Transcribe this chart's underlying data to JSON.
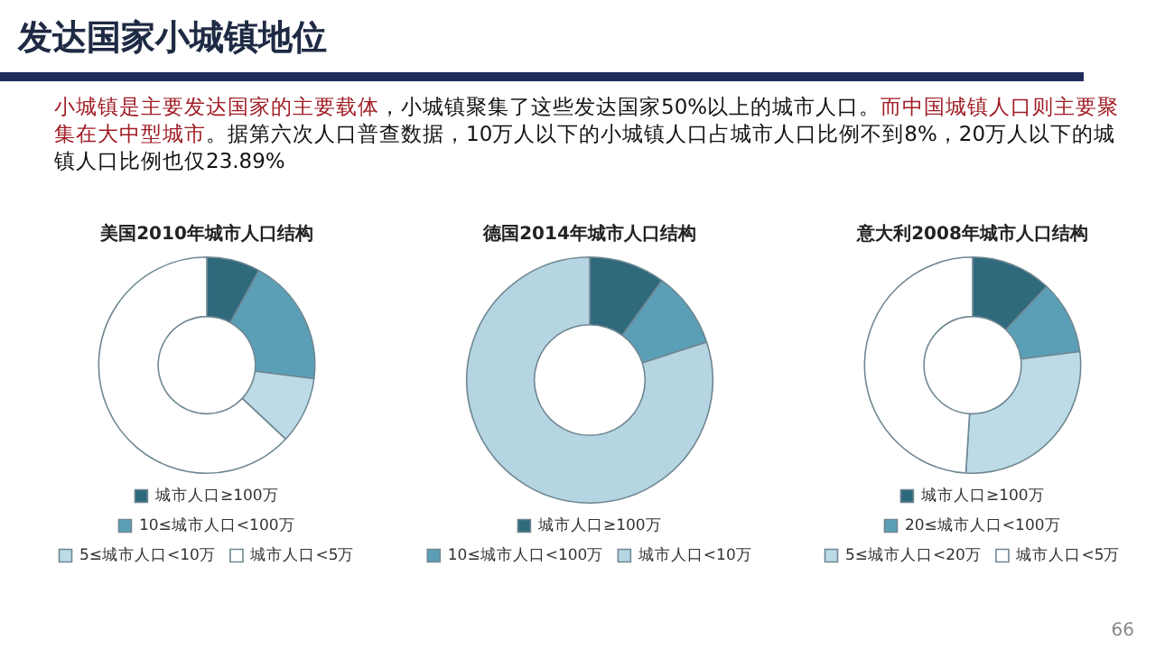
{
  "chart_data": [
    {
      "type": "donut",
      "title": "美国2010年城市人口结构",
      "legend": "bottom",
      "annotations": [
        "发达国家小城镇地位",
        "小城镇是主要发达国家的主要载体",
        "，小城镇聚集了这些发达国家50%以上的城市人口。",
        "而中国城镇人口则主要聚集在大中型城市",
        "。据第六次人口普查数据，10万人以下的小城镇人口占城市人口比例不到8%，20万人以下的城镇人口比例也仅23.89%"
      ],
      "categories": [
        "城市人口≥100万",
        "10≤城市人口<100万",
        "5≤城市人口<10万",
        "城市人口<5万"
      ],
      "values": [
        8,
        19,
        10,
        63
      ],
      "colors": [
        "#2f6a7c",
        "#5b9fb7",
        "#bcdbe7",
        "#ffffff"
      ]
    },
    {
      "type": "donut",
      "title": "德国2014年城市人口结构",
      "legend": "bottom",
      "categories": [
        "城市人口≥100万",
        "10≤城市人口<100万",
        "城市人口<10万"
      ],
      "values": [
        10,
        10,
        80
      ],
      "colors": [
        "#2f6a7c",
        "#5b9fb7",
        "#b5d5e2"
      ]
    },
    {
      "type": "donut",
      "title": "意大利2008年城市人口结构",
      "legend": "bottom",
      "annotations": [
        "66"
      ],
      "categories": [
        "城市人口≥100万",
        "20≤城市人口<100万",
        "5≤城市人口<20万",
        "城市人口<5万"
      ],
      "values": [
        12,
        11,
        28,
        49
      ],
      "colors": [
        "#2f6a7c",
        "#5b9fb7",
        "#bcdbe7",
        "#ffffff"
      ]
    }
  ]
}
